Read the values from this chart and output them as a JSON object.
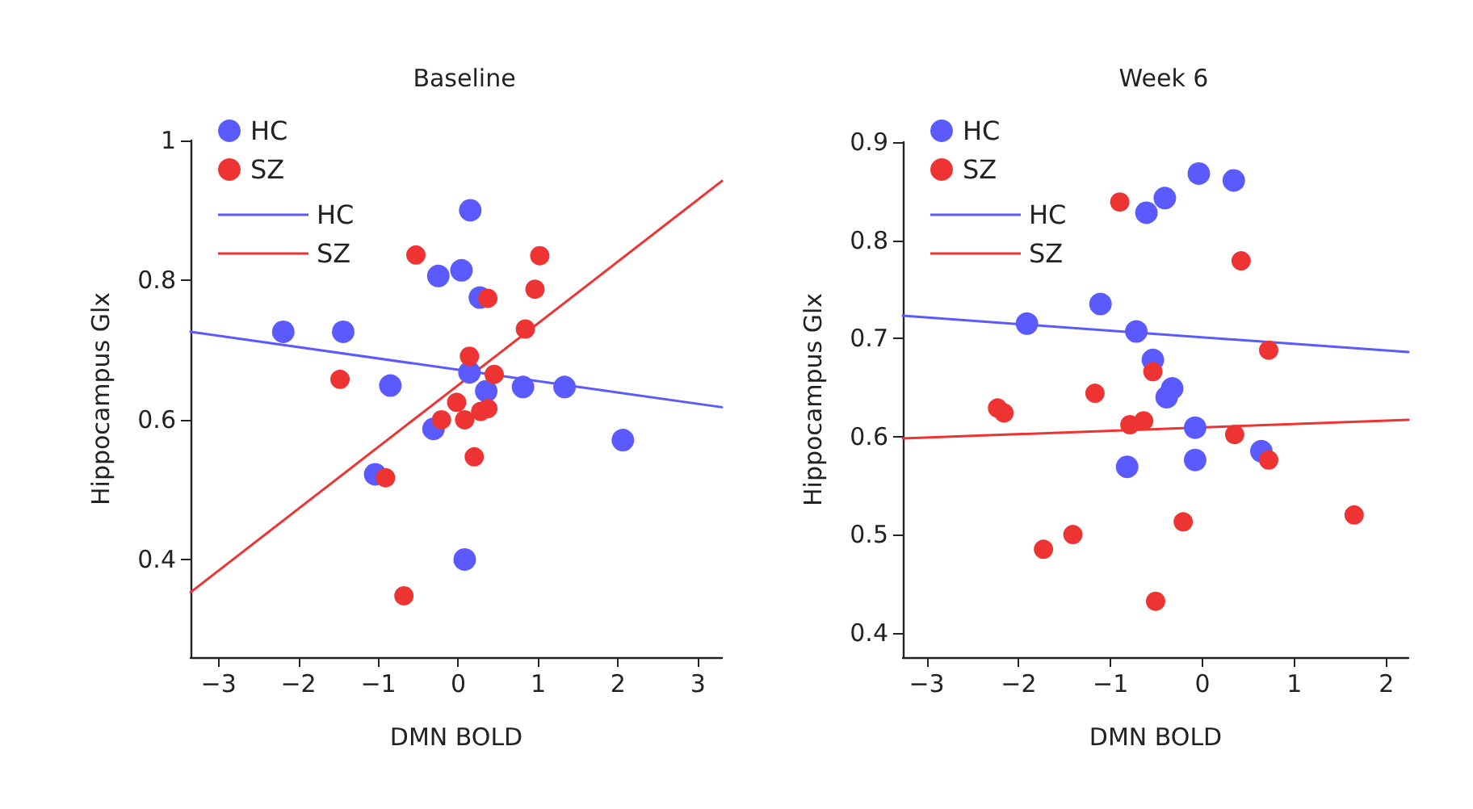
{
  "chart_data": [
    {
      "type": "scatter",
      "title": "Baseline",
      "xlabel": "DMN BOLD",
      "ylabel": "Hippocampus Glx",
      "marker": "circle",
      "legend": "top left",
      "xlim": [
        -3.35,
        3.3
      ],
      "ylim": [
        0.26,
        1
      ],
      "xticks": [
        {
          "value": -3,
          "label": "−3"
        },
        {
          "value": -2,
          "label": "−2"
        },
        {
          "value": -1,
          "label": "−1"
        },
        0,
        1,
        2,
        3
      ],
      "yticks": [
        0.4,
        0.6,
        0.8,
        1
      ],
      "series": [
        {
          "name": "HC",
          "color": "#5a5aff",
          "x": [
            0.15,
            -0.25,
            0.04,
            0.27,
            -2.19,
            -1.44,
            -0.85,
            0.14,
            0.35,
            0.81,
            1.33,
            -0.31,
            -1.04,
            2.06,
            0.08
          ],
          "values": [
            0.9,
            0.806,
            0.814,
            0.775,
            0.726,
            0.726,
            0.649,
            0.668,
            0.641,
            0.647,
            0.647,
            0.587,
            0.522,
            0.571,
            0.4
          ]
        },
        {
          "name": "SZ",
          "color": "#ee3333",
          "x": [
            -0.53,
            1.02,
            0.96,
            0.37,
            0.84,
            0.14,
            -1.48,
            0.45,
            -0.02,
            -0.21,
            0.08,
            0.28,
            0.37,
            0.2,
            -0.91,
            -0.68
          ],
          "values": [
            0.836,
            0.835,
            0.787,
            0.774,
            0.73,
            0.691,
            0.658,
            0.665,
            0.625,
            0.6,
            0.6,
            0.612,
            0.616,
            0.547,
            0.517,
            0.348
          ]
        },
        {
          "name": "HC",
          "type": "line",
          "marker": "none",
          "color": "#5a5aff",
          "x": [
            -3.35,
            3.3
          ],
          "values": [
            0.726,
            0.618
          ]
        },
        {
          "name": "SZ",
          "type": "line",
          "marker": "none",
          "color": "#ee3333",
          "x": [
            -3.35,
            3.3
          ],
          "values": [
            0.353,
            0.942
          ]
        }
      ]
    },
    {
      "type": "scatter",
      "title": "Week 6",
      "xlabel": "DMN BOLD",
      "ylabel": "Hippocampus Glx",
      "marker": "circle",
      "legend": "top left",
      "xlim": [
        -3.26,
        2.24
      ],
      "ylim": [
        0.375,
        0.9
      ],
      "xticks": [
        {
          "value": -3,
          "label": "−3"
        },
        {
          "value": -2,
          "label": "−2"
        },
        {
          "value": -1,
          "label": "−1"
        },
        0,
        1,
        2
      ],
      "yticks": [
        0.4,
        0.5,
        0.6,
        0.7,
        0.8,
        0.9
      ],
      "series": [
        {
          "name": "HC",
          "color": "#5a5aff",
          "x": [
            -0.04,
            0.34,
            -0.41,
            -0.61,
            -1.11,
            -1.91,
            -0.72,
            -0.54,
            -0.33,
            -0.39,
            -0.08,
            0.64,
            -0.08,
            -0.82
          ],
          "values": [
            0.868,
            0.861,
            0.843,
            0.828,
            0.735,
            0.715,
            0.707,
            0.678,
            0.649,
            0.64,
            0.609,
            0.585,
            0.576,
            0.569
          ]
        },
        {
          "name": "SZ",
          "color": "#ee3333",
          "x": [
            -0.9,
            0.42,
            0.72,
            -0.54,
            -1.17,
            -2.23,
            -2.16,
            -0.79,
            -0.64,
            0.35,
            0.72,
            -0.21,
            1.65,
            -1.41,
            -1.73,
            -0.51
          ],
          "values": [
            0.839,
            0.779,
            0.688,
            0.666,
            0.644,
            0.629,
            0.624,
            0.612,
            0.616,
            0.602,
            0.576,
            0.513,
            0.52,
            0.5,
            0.485,
            0.432
          ]
        },
        {
          "name": "HC",
          "type": "line",
          "marker": "none",
          "color": "#5a5aff",
          "x": [
            -3.26,
            2.24
          ],
          "values": [
            0.723,
            0.686
          ]
        },
        {
          "name": "SZ",
          "type": "line",
          "marker": "none",
          "color": "#ee3333",
          "x": [
            -3.26,
            2.24
          ],
          "values": [
            0.598,
            0.617
          ]
        }
      ]
    }
  ]
}
